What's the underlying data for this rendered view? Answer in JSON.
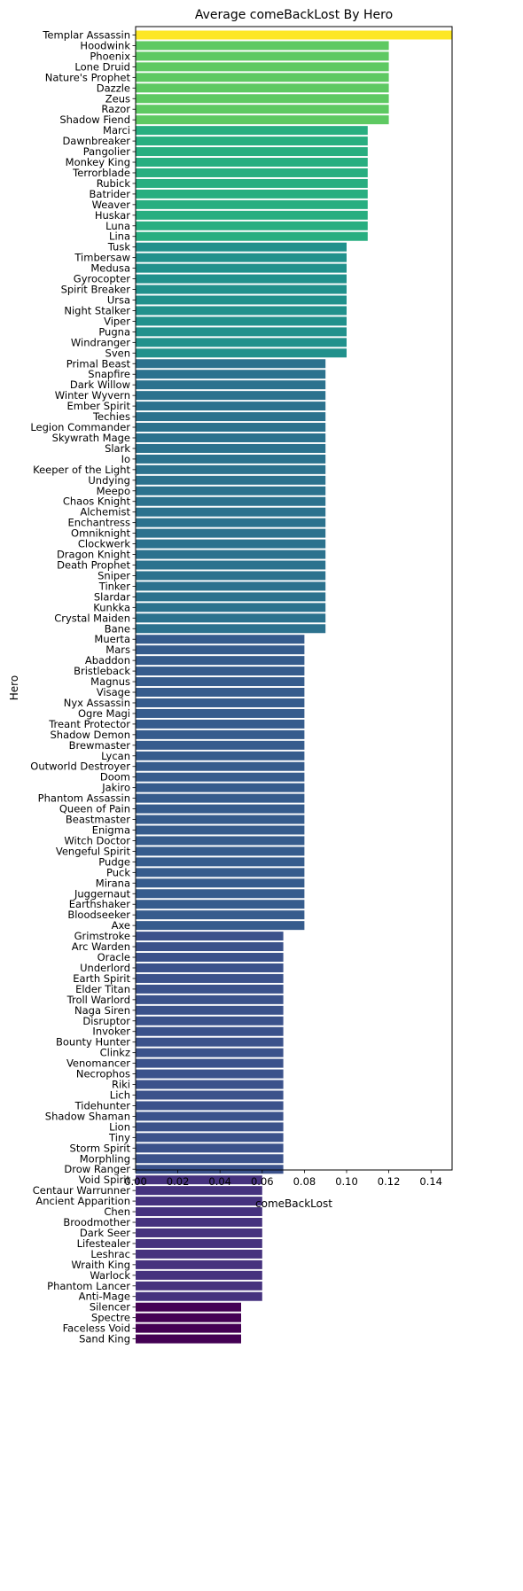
{
  "chart_data": {
    "type": "bar",
    "orientation": "horizontal",
    "title": "Average comeBackLost By Hero",
    "xlabel": "comeBackLost",
    "ylabel": "Hero",
    "xlim": [
      0,
      0.15
    ],
    "xticks": [
      "0.00",
      "0.02",
      "0.04",
      "0.06",
      "0.08",
      "0.10",
      "0.12",
      "0.14"
    ],
    "xtick_values": [
      0,
      0.02,
      0.04,
      0.06,
      0.08,
      0.1,
      0.12,
      0.14
    ],
    "grid": false,
    "colormap": "viridis",
    "colors": {
      "0.05": "#440154",
      "0.06": "#46327e",
      "0.07": "#3b528b",
      "0.08": "#365c8d",
      "0.09": "#2c728e",
      "0.10": "#21918c",
      "0.11": "#28ae80",
      "0.12": "#5ec962",
      "0.15": "#fde725"
    },
    "categories": [
      "Templar Assassin",
      "Hoodwink",
      "Phoenix",
      "Lone Druid",
      "Nature's Prophet",
      "Dazzle",
      "Zeus",
      "Razor",
      "Shadow Fiend",
      "Marci",
      "Dawnbreaker",
      "Pangolier",
      "Monkey King",
      "Terrorblade",
      "Rubick",
      "Batrider",
      "Weaver",
      "Huskar",
      "Luna",
      "Lina",
      "Tusk",
      "Timbersaw",
      "Medusa",
      "Gyrocopter",
      "Spirit Breaker",
      "Ursa",
      "Night Stalker",
      "Viper",
      "Pugna",
      "Windranger",
      "Sven",
      "Primal Beast",
      "Snapfire",
      "Dark Willow",
      "Winter Wyvern",
      "Ember Spirit",
      "Techies",
      "Legion Commander",
      "Skywrath Mage",
      "Slark",
      "Io",
      "Keeper of the Light",
      "Undying",
      "Meepo",
      "Chaos Knight",
      "Alchemist",
      "Enchantress",
      "Omniknight",
      "Clockwerk",
      "Dragon Knight",
      "Death Prophet",
      "Sniper",
      "Tinker",
      "Slardar",
      "Kunkka",
      "Crystal Maiden",
      "Bane",
      "Muerta",
      "Mars",
      "Abaddon",
      "Bristleback",
      "Magnus",
      "Visage",
      "Nyx Assassin",
      "Ogre Magi",
      "Treant Protector",
      "Shadow Demon",
      "Brewmaster",
      "Lycan",
      "Outworld Destroyer",
      "Doom",
      "Jakiro",
      "Phantom Assassin",
      "Queen of Pain",
      "Beastmaster",
      "Enigma",
      "Witch Doctor",
      "Vengeful Spirit",
      "Pudge",
      "Puck",
      "Mirana",
      "Juggernaut",
      "Earthshaker",
      "Bloodseeker",
      "Axe",
      "Grimstroke",
      "Arc Warden",
      "Oracle",
      "Underlord",
      "Earth Spirit",
      "Elder Titan",
      "Troll Warlord",
      "Naga Siren",
      "Disruptor",
      "Invoker",
      "Bounty Hunter",
      "Clinkz",
      "Venomancer",
      "Necrophos",
      "Riki",
      "Lich",
      "Tidehunter",
      "Shadow Shaman",
      "Lion",
      "Tiny",
      "Storm Spirit",
      "Morphling",
      "Drow Ranger",
      "Void Spirit",
      "Centaur Warrunner",
      "Ancient Apparition",
      "Chen",
      "Broodmother",
      "Dark Seer",
      "Lifestealer",
      "Leshrac",
      "Wraith King",
      "Warlock",
      "Phantom Lancer",
      "Anti-Mage",
      "Silencer",
      "Spectre",
      "Faceless Void",
      "Sand King"
    ],
    "values": [
      0.15,
      0.12,
      0.12,
      0.12,
      0.12,
      0.12,
      0.12,
      0.12,
      0.12,
      0.11,
      0.11,
      0.11,
      0.11,
      0.11,
      0.11,
      0.11,
      0.11,
      0.11,
      0.11,
      0.11,
      0.1,
      0.1,
      0.1,
      0.1,
      0.1,
      0.1,
      0.1,
      0.1,
      0.1,
      0.1,
      0.1,
      0.09,
      0.09,
      0.09,
      0.09,
      0.09,
      0.09,
      0.09,
      0.09,
      0.09,
      0.09,
      0.09,
      0.09,
      0.09,
      0.09,
      0.09,
      0.09,
      0.09,
      0.09,
      0.09,
      0.09,
      0.09,
      0.09,
      0.09,
      0.09,
      0.09,
      0.09,
      0.08,
      0.08,
      0.08,
      0.08,
      0.08,
      0.08,
      0.08,
      0.08,
      0.08,
      0.08,
      0.08,
      0.08,
      0.08,
      0.08,
      0.08,
      0.08,
      0.08,
      0.08,
      0.08,
      0.08,
      0.08,
      0.08,
      0.08,
      0.08,
      0.08,
      0.08,
      0.08,
      0.08,
      0.07,
      0.07,
      0.07,
      0.07,
      0.07,
      0.07,
      0.07,
      0.07,
      0.07,
      0.07,
      0.07,
      0.07,
      0.07,
      0.07,
      0.07,
      0.07,
      0.07,
      0.07,
      0.07,
      0.07,
      0.07,
      0.07,
      0.07,
      0.06,
      0.06,
      0.06,
      0.06,
      0.06,
      0.06,
      0.06,
      0.06,
      0.06,
      0.06,
      0.06,
      0.06,
      0.05,
      0.05,
      0.05,
      0.05
    ]
  }
}
